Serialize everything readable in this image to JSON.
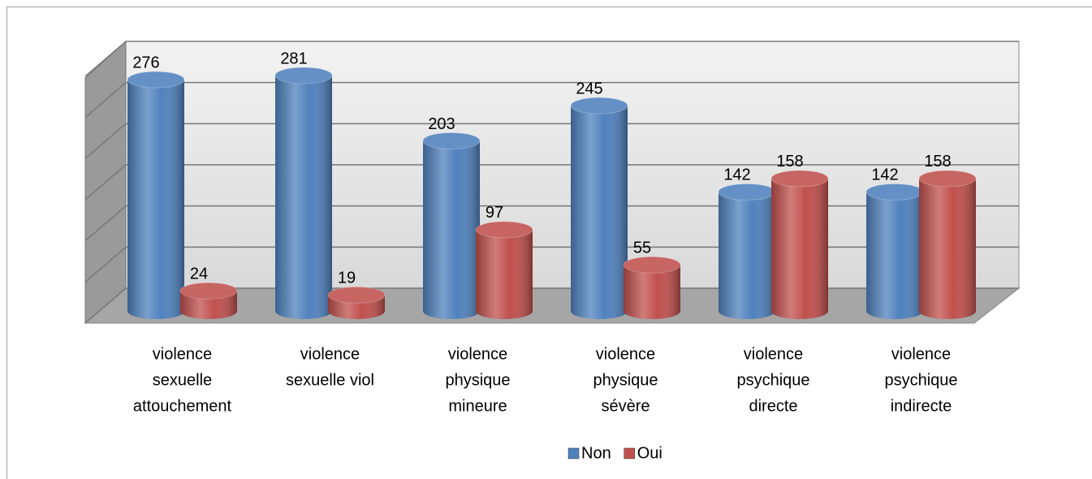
{
  "chart_data": {
    "type": "bar3d",
    "categories": [
      [
        "violence",
        "sexuelle",
        "attouchement"
      ],
      [
        "violence",
        "sexuelle viol"
      ],
      [
        "violence",
        "physique",
        "mineure"
      ],
      [
        "violence",
        "physique",
        "sévère"
      ],
      [
        "violence",
        "psychique",
        "directe"
      ],
      [
        "violence",
        "psychique",
        "indirecte"
      ]
    ],
    "series": [
      {
        "name": "Non",
        "color": "#4f81bd",
        "values": [
          276,
          281,
          203,
          245,
          142,
          142
        ]
      },
      {
        "name": "Oui",
        "color": "#c0504d",
        "values": [
          24,
          19,
          97,
          55,
          158,
          158
        ]
      }
    ],
    "ylim": [
      0,
      300
    ],
    "yticks": [
      0,
      50,
      100,
      150,
      200,
      250,
      300
    ],
    "grid": true,
    "legend": "bottom"
  }
}
